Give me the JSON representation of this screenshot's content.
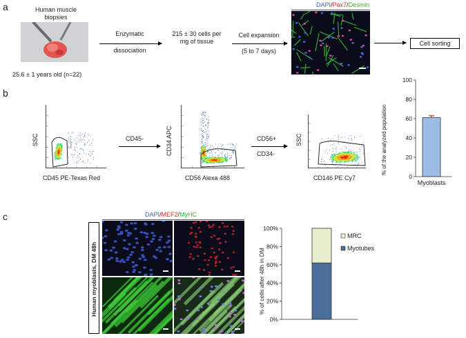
{
  "panels": {
    "a": "a",
    "b": "b",
    "c": "c"
  },
  "panel_a": {
    "biopsy_title_1": "Human muscle",
    "biopsy_title_2": "biopsies",
    "age_caption": "25.6 ± 1 years old (n=22)",
    "step1_line1": "Enzymatic",
    "step1_line2": "dissociation",
    "step2_line1": "215 ± 30 cells per",
    "step2_line2": "mg of tissue",
    "step3_line1": "Cell expansion",
    "step3_line2": "(5 to 7 days)",
    "stain_dapi": "DAPI",
    "stain_sep1": "/",
    "stain_pax7": "Pax7",
    "stain_sep2": "/",
    "stain_desmin": "Desmin",
    "sorting_box": "Cell sorting",
    "colors": {
      "dapi": "#3a5fd0",
      "pax7": "#e0282a",
      "desmin": "#2db52d"
    }
  },
  "panel_b": {
    "plot1_ylabel": "SSC",
    "plot1_xlabel": "CD45 PE-Texas Red",
    "gate1_label": "CD45-",
    "plot2_ylabel": "CD34 APC",
    "plot2_xlabel": "CD56 Alexa 488",
    "gate2_label_1": "CD56+",
    "gate2_label_2": "CD34-",
    "plot3_ylabel": "SSC",
    "plot3_xlabel": "CD146 PE Cy7",
    "bar_ylabel": "% of the analyzed population",
    "bar_category": "Myoblasts",
    "bar_yticks": [
      "0",
      "20",
      "40",
      "60",
      "80",
      "100"
    ]
  },
  "panel_c": {
    "side_label": "Human myoblasts, DM 48h",
    "stain_dapi": "DAPI",
    "stain_sep1": "/",
    "stain_mef2": "MEF2",
    "stain_sep2": "/",
    "stain_myhc": "MyHC",
    "colors": {
      "dapi": "#3a5fd0",
      "mef2": "#e0282a",
      "myhc": "#2db52d"
    },
    "stack_ylabel": "% of cells after 48h in DM",
    "stack_yticks": [
      "0%",
      "20%",
      "40%",
      "60%",
      "80%",
      "100%"
    ],
    "legend_mrc": "MRC",
    "legend_myotubes": "Myotubes"
  },
  "chart_data": [
    {
      "type": "bar",
      "categories": [
        "Myoblasts"
      ],
      "values": [
        61
      ],
      "error": [
        2
      ],
      "title": "",
      "xlabel": "",
      "ylabel": "% of the analyzed population",
      "ylim": [
        0,
        100
      ],
      "color": "#9dbde6"
    },
    {
      "type": "bar",
      "stacked": true,
      "categories": [
        ""
      ],
      "series": [
        {
          "name": "Myotubes",
          "values": [
            62
          ],
          "color": "#4a6d99"
        },
        {
          "name": "MRC",
          "values": [
            38
          ],
          "color": "#e7efcf"
        }
      ],
      "xlabel": "",
      "ylabel": "% of cells after 48h in DM",
      "ylim": [
        0,
        100
      ]
    }
  ]
}
